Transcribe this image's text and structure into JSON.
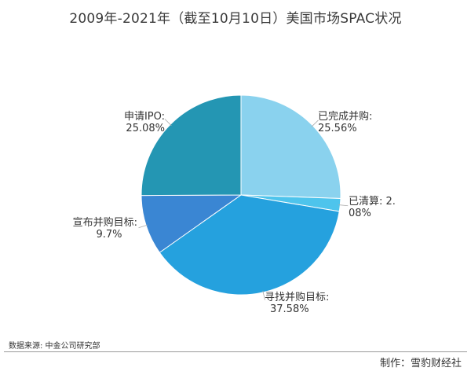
{
  "chart_data": {
    "type": "pie",
    "title": "2009年-2021年（截至10月10日）美国市场SPAC状况",
    "slices": [
      {
        "label": "已完成并购:",
        "line1": "已完成并购:",
        "line2": "25.56%",
        "value": 25.56,
        "color": "#8ad2ee"
      },
      {
        "label": "已清算:",
        "line1": "已清算: 2.",
        "line2": "08%",
        "value": 2.08,
        "color": "#4ec4ec"
      },
      {
        "label": "寻找并购目标:",
        "line1": "寻找并购目标:",
        "line2": "37.58%",
        "value": 37.58,
        "color": "#25a1de"
      },
      {
        "label": "宣布并购目标:",
        "line1": "宣布并购目标:",
        "line2": "9.7%",
        "value": 9.7,
        "color": "#3a86d3"
      },
      {
        "label": "申请IPO:",
        "line1": "申请IPO:",
        "line2": "25.08%",
        "value": 25.08,
        "color": "#2496b3"
      }
    ]
  },
  "footer": {
    "source": "数据来源: 中金公司研究部",
    "producer": "制作：雪豹财经社"
  }
}
